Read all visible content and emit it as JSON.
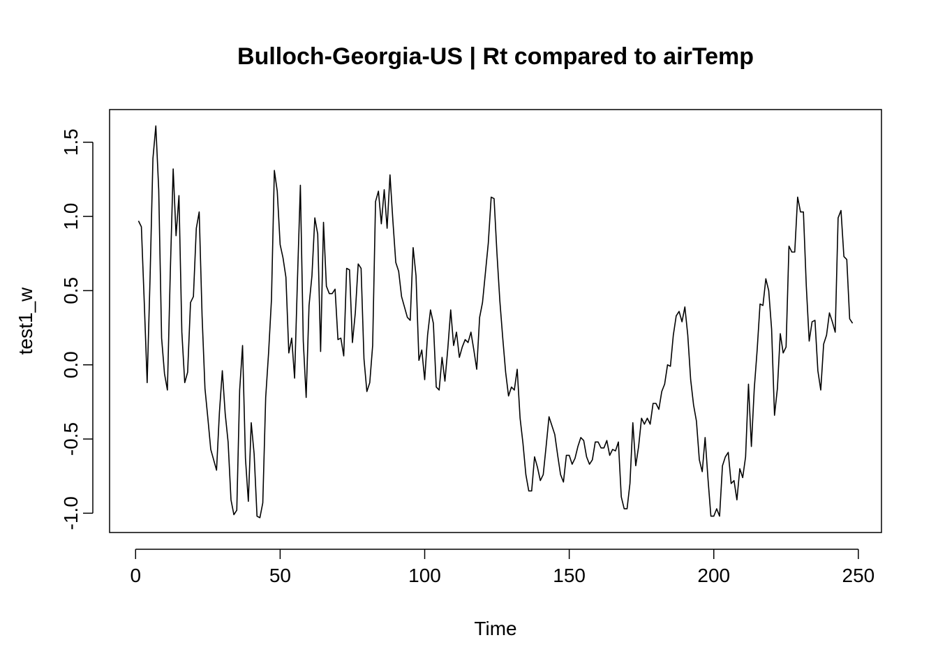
{
  "chart_data": {
    "type": "line",
    "title": "Bulloch-Georgia-US | Rt compared to airTemp",
    "xlabel": "Time",
    "ylabel": "test1_w",
    "xlim": [
      -9,
      258
    ],
    "ylim": [
      -1.13,
      1.72
    ],
    "x_ticks": [
      0,
      50,
      100,
      150,
      200,
      250
    ],
    "y_ticks": [
      -1.0,
      -0.5,
      0.0,
      0.5,
      1.0,
      1.5
    ],
    "x_tick_labels": [
      "0",
      "50",
      "100",
      "150",
      "200",
      "250"
    ],
    "y_tick_labels": [
      "-1.0",
      "-0.5",
      "0.0",
      "0.5",
      "1.0",
      "1.5"
    ],
    "grid": false,
    "series": [
      {
        "color": "#000000",
        "x": [
          1,
          2,
          3,
          4,
          5,
          6,
          7,
          8,
          9,
          10,
          11,
          12,
          13,
          14,
          15,
          16,
          17,
          18,
          19,
          20,
          21,
          22,
          23,
          24,
          25,
          26,
          27,
          28,
          29,
          30,
          31,
          32,
          33,
          34,
          35,
          36,
          37,
          38,
          39,
          40,
          41,
          42,
          43,
          44,
          45,
          46,
          47,
          48,
          49,
          50,
          51,
          52,
          53,
          54,
          55,
          56,
          57,
          58,
          59,
          60,
          61,
          62,
          63,
          64,
          65,
          66,
          67,
          68,
          69,
          70,
          71,
          72,
          73,
          74,
          75,
          76,
          77,
          78,
          79,
          80,
          81,
          82,
          83,
          84,
          85,
          86,
          87,
          88,
          89,
          90,
          91,
          92,
          93,
          94,
          95,
          96,
          97,
          98,
          99,
          100,
          101,
          102,
          103,
          104,
          105,
          106,
          107,
          108,
          109,
          110,
          111,
          112,
          113,
          114,
          115,
          116,
          117,
          118,
          119,
          120,
          121,
          122,
          123,
          124,
          125,
          126,
          127,
          128,
          129,
          130,
          131,
          132,
          133,
          134,
          135,
          136,
          137,
          138,
          139,
          140,
          141,
          142,
          143,
          144,
          145,
          146,
          147,
          148,
          149,
          150,
          151,
          152,
          153,
          154,
          155,
          156,
          157,
          158,
          159,
          160,
          161,
          162,
          163,
          164,
          165,
          166,
          167,
          168,
          169,
          170,
          171,
          172,
          173,
          174,
          175,
          176,
          177,
          178,
          179,
          180,
          181,
          182,
          183,
          184,
          185,
          186,
          187,
          188,
          189,
          190,
          191,
          192,
          193,
          194,
          195,
          196,
          197,
          198,
          199,
          200,
          201,
          202,
          203,
          204,
          205,
          206,
          207,
          208,
          209,
          210,
          211,
          212,
          213,
          214,
          215,
          216,
          217,
          218,
          219,
          220,
          221,
          222,
          223,
          224,
          225,
          226,
          227,
          228,
          229,
          230,
          231,
          232,
          233,
          234,
          235,
          236,
          237,
          238,
          239,
          240,
          241,
          242,
          243,
          244,
          245,
          246,
          247,
          248
        ],
        "y": [
          0.97,
          0.93,
          0.42,
          -0.12,
          0.58,
          1.39,
          1.61,
          1.18,
          0.18,
          -0.06,
          -0.17,
          0.62,
          1.32,
          0.87,
          1.14,
          0.22,
          -0.12,
          -0.05,
          0.42,
          0.46,
          0.92,
          1.03,
          0.33,
          -0.16,
          -0.36,
          -0.57,
          -0.64,
          -0.71,
          -0.32,
          -0.04,
          -0.33,
          -0.52,
          -0.91,
          -1.01,
          -0.98,
          -0.17,
          0.13,
          -0.63,
          -0.92,
          -0.39,
          -0.6,
          -1.02,
          -1.03,
          -0.93,
          -0.22,
          0.08,
          0.44,
          1.31,
          1.17,
          0.81,
          0.72,
          0.59,
          0.08,
          0.18,
          -0.09,
          0.58,
          1.21,
          0.16,
          -0.22,
          0.4,
          0.6,
          0.99,
          0.88,
          0.09,
          0.96,
          0.53,
          0.48,
          0.48,
          0.51,
          0.17,
          0.18,
          0.06,
          0.65,
          0.64,
          0.15,
          0.35,
          0.68,
          0.65,
          0.04,
          -0.18,
          -0.12,
          0.13,
          1.1,
          1.17,
          0.95,
          1.18,
          0.92,
          1.28,
          0.97,
          0.69,
          0.63,
          0.46,
          0.39,
          0.32,
          0.3,
          0.79,
          0.6,
          0.03,
          0.1,
          -0.1,
          0.2,
          0.37,
          0.28,
          -0.15,
          -0.17,
          0.05,
          -0.11,
          0.11,
          0.37,
          0.13,
          0.22,
          0.05,
          0.12,
          0.17,
          0.15,
          0.22,
          0.1,
          -0.03,
          0.32,
          0.42,
          0.62,
          0.82,
          1.13,
          1.12,
          0.75,
          0.43,
          0.18,
          -0.05,
          -0.21,
          -0.15,
          -0.17,
          -0.03,
          -0.36,
          -0.53,
          -0.74,
          -0.85,
          -0.85,
          -0.62,
          -0.69,
          -0.78,
          -0.74,
          -0.55,
          -0.35,
          -0.41,
          -0.47,
          -0.61,
          -0.74,
          -0.79,
          -0.61,
          -0.61,
          -0.67,
          -0.63,
          -0.55,
          -0.49,
          -0.51,
          -0.62,
          -0.67,
          -0.64,
          -0.52,
          -0.52,
          -0.56,
          -0.56,
          -0.51,
          -0.61,
          -0.57,
          -0.58,
          -0.52,
          -0.89,
          -0.97,
          -0.97,
          -0.8,
          -0.39,
          -0.68,
          -0.55,
          -0.36,
          -0.4,
          -0.36,
          -0.4,
          -0.26,
          -0.26,
          -0.3,
          -0.18,
          -0.13,
          0.0,
          -0.01,
          0.2,
          0.33,
          0.36,
          0.29,
          0.39,
          0.2,
          -0.1,
          -0.27,
          -0.38,
          -0.64,
          -0.72,
          -0.49,
          -0.77,
          -1.02,
          -1.02,
          -0.97,
          -1.02,
          -0.68,
          -0.62,
          -0.59,
          -0.8,
          -0.78,
          -0.91,
          -0.7,
          -0.76,
          -0.62,
          -0.13,
          -0.55,
          -0.16,
          0.1,
          0.41,
          0.4,
          0.58,
          0.5,
          0.24,
          -0.34,
          -0.16,
          0.21,
          0.08,
          0.12,
          0.8,
          0.76,
          0.76,
          1.13,
          1.03,
          1.03,
          0.53,
          0.16,
          0.29,
          0.3,
          -0.04,
          -0.17,
          0.14,
          0.2,
          0.35,
          0.29,
          0.22,
          0.99,
          1.04,
          0.73,
          0.71,
          0.31,
          0.28
        ]
      }
    ]
  }
}
